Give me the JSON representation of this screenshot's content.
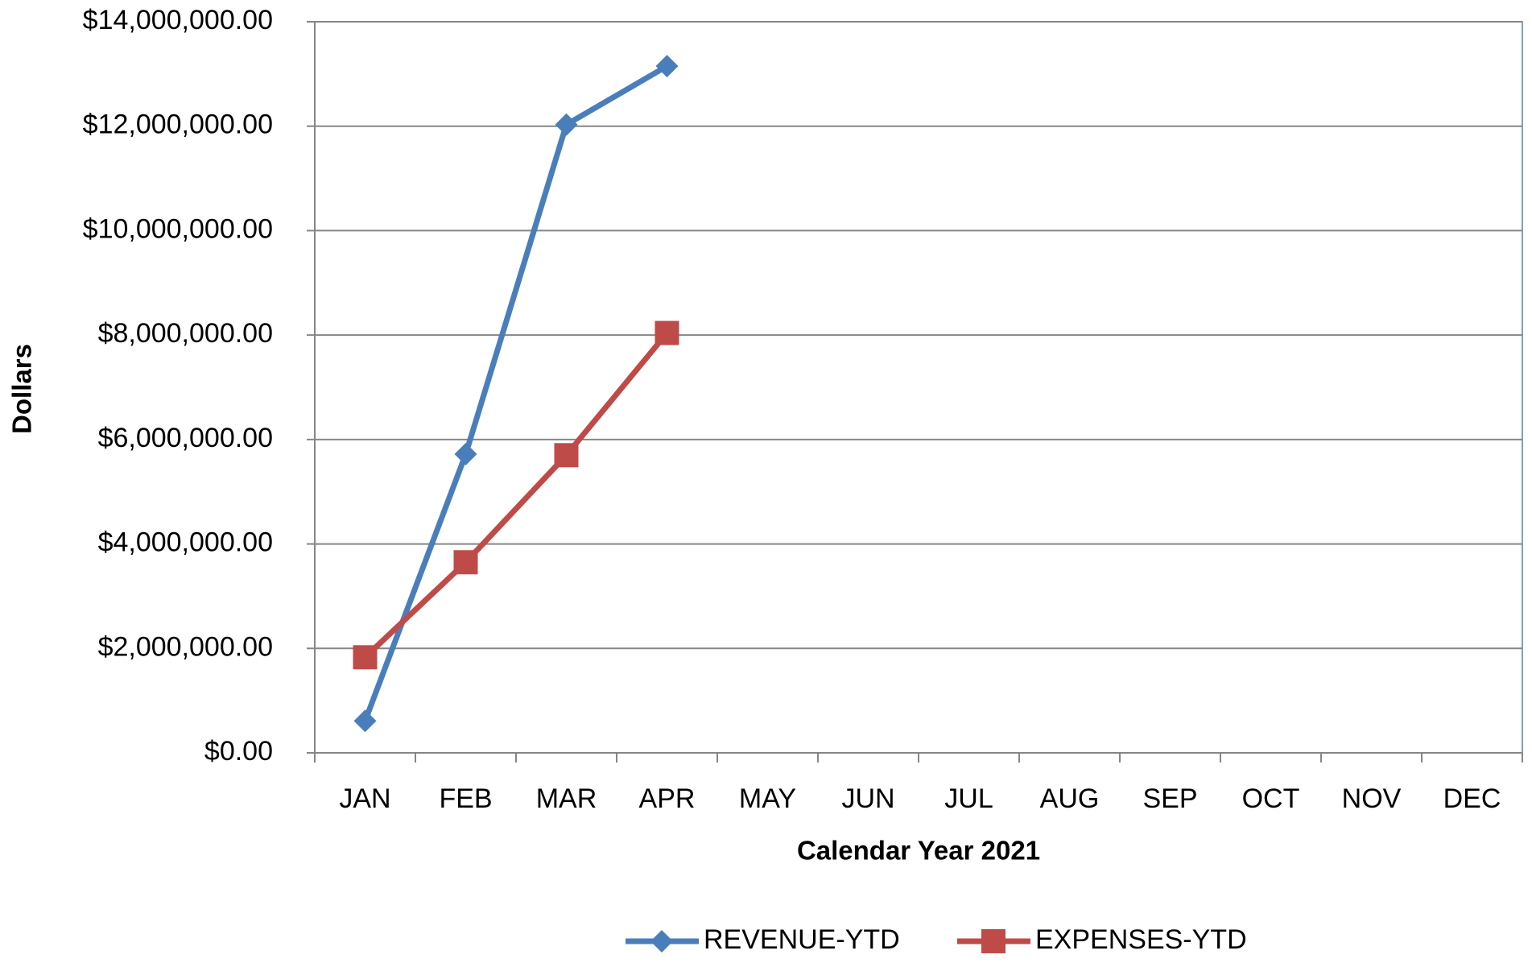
{
  "chart_data": {
    "type": "line",
    "x_label": "Calendar Year 2021",
    "y_label": "Dollars",
    "categories": [
      "JAN",
      "FEB",
      "MAR",
      "APR",
      "MAY",
      "JUN",
      "JUL",
      "AUG",
      "SEP",
      "OCT",
      "NOV",
      "DEC"
    ],
    "series": [
      {
        "name": "REVENUE-YTD",
        "color": "#4a7ebb",
        "marker": "diamond",
        "values": [
          610000,
          5720000,
          12030000,
          13150000,
          null,
          null,
          null,
          null,
          null,
          null,
          null,
          null
        ]
      },
      {
        "name": "EXPENSES-YTD",
        "color": "#be4b48",
        "marker": "square",
        "values": [
          1830000,
          3650000,
          5700000,
          8040000,
          null,
          null,
          null,
          null,
          null,
          null,
          null,
          null
        ]
      }
    ],
    "ylim": [
      0,
      14000000
    ],
    "yticks": [
      {
        "value": 0,
        "label": "$0.00"
      },
      {
        "value": 2000000,
        "label": "$2,000,000.00"
      },
      {
        "value": 4000000,
        "label": "$4,000,000.00"
      },
      {
        "value": 6000000,
        "label": "$6,000,000.00"
      },
      {
        "value": 8000000,
        "label": "$8,000,000.00"
      },
      {
        "value": 10000000,
        "label": "$10,000,000.00"
      },
      {
        "value": 12000000,
        "label": "$12,000,000.00"
      },
      {
        "value": 14000000,
        "label": "$14,000,000.00"
      }
    ],
    "grid": true,
    "legend": "bottom"
  }
}
